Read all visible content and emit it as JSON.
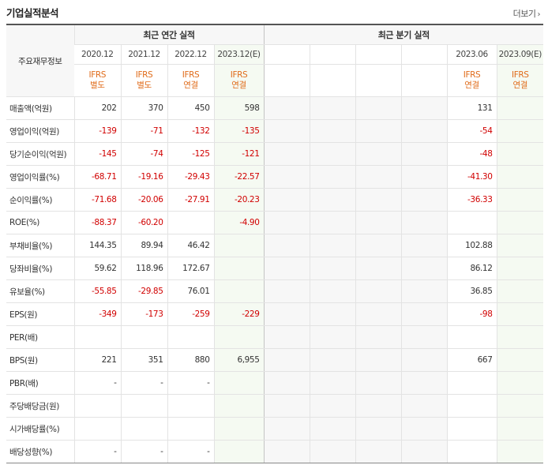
{
  "header": {
    "title": "기업실적분석",
    "more_label": "더보기"
  },
  "table": {
    "row_header_label": "주요재무정보",
    "annual_group_label": "최근 연간 실적",
    "quarter_group_label": "최근 분기 실적",
    "annual_periods": [
      "2020.12",
      "2021.12",
      "2022.12",
      "2023.12(E)"
    ],
    "annual_basis": [
      {
        "line1": "IFRS",
        "line2": "별도"
      },
      {
        "line1": "IFRS",
        "line2": "별도"
      },
      {
        "line1": "IFRS",
        "line2": "연결"
      },
      {
        "line1": "IFRS",
        "line2": "연결"
      }
    ],
    "quarter_periods": [
      "",
      "",
      "",
      "",
      "2023.06",
      "2023.09(E)"
    ],
    "quarter_basis": [
      {
        "line1": "",
        "line2": ""
      },
      {
        "line1": "",
        "line2": ""
      },
      {
        "line1": "",
        "line2": ""
      },
      {
        "line1": "",
        "line2": ""
      },
      {
        "line1": "IFRS",
        "line2": "연결"
      },
      {
        "line1": "IFRS",
        "line2": "연결"
      }
    ],
    "rows": [
      {
        "label": "매출액(억원)",
        "annual": [
          "202",
          "370",
          "450",
          "598"
        ],
        "quarter": [
          "",
          "",
          "",
          "",
          "131",
          ""
        ]
      },
      {
        "label": "영업이익(억원)",
        "annual": [
          "-139",
          "-71",
          "-132",
          "-135"
        ],
        "quarter": [
          "",
          "",
          "",
          "",
          "-54",
          ""
        ]
      },
      {
        "label": "당기순이익(억원)",
        "annual": [
          "-145",
          "-74",
          "-125",
          "-121"
        ],
        "quarter": [
          "",
          "",
          "",
          "",
          "-48",
          ""
        ]
      },
      {
        "label": "영업이익률(%)",
        "annual": [
          "-68.71",
          "-19.16",
          "-29.43",
          "-22.57"
        ],
        "quarter": [
          "",
          "",
          "",
          "",
          "-41.30",
          ""
        ]
      },
      {
        "label": "순이익률(%)",
        "annual": [
          "-71.68",
          "-20.06",
          "-27.91",
          "-20.23"
        ],
        "quarter": [
          "",
          "",
          "",
          "",
          "-36.33",
          ""
        ]
      },
      {
        "label": "ROE(%)",
        "annual": [
          "-88.37",
          "-60.20",
          "",
          "-4.90"
        ],
        "quarter": [
          "",
          "",
          "",
          "",
          "",
          ""
        ]
      },
      {
        "label": "부채비율(%)",
        "annual": [
          "144.35",
          "89.94",
          "46.42",
          ""
        ],
        "quarter": [
          "",
          "",
          "",
          "",
          "102.88",
          ""
        ]
      },
      {
        "label": "당좌비율(%)",
        "annual": [
          "59.62",
          "118.96",
          "172.67",
          ""
        ],
        "quarter": [
          "",
          "",
          "",
          "",
          "86.12",
          ""
        ]
      },
      {
        "label": "유보율(%)",
        "annual": [
          "-55.85",
          "-29.85",
          "76.01",
          ""
        ],
        "quarter": [
          "",
          "",
          "",
          "",
          "36.85",
          ""
        ]
      },
      {
        "label": "EPS(원)",
        "annual": [
          "-349",
          "-173",
          "-259",
          "-229"
        ],
        "quarter": [
          "",
          "",
          "",
          "",
          "-98",
          ""
        ]
      },
      {
        "label": "PER(배)",
        "annual": [
          "",
          "",
          "",
          ""
        ],
        "quarter": [
          "",
          "",
          "",
          "",
          "",
          ""
        ]
      },
      {
        "label": "BPS(원)",
        "annual": [
          "221",
          "351",
          "880",
          "6,955"
        ],
        "quarter": [
          "",
          "",
          "",
          "",
          "667",
          ""
        ]
      },
      {
        "label": "PBR(배)",
        "annual": [
          "-",
          "-",
          "-",
          ""
        ],
        "quarter": [
          "",
          "",
          "",
          "",
          "",
          ""
        ]
      },
      {
        "label": "주당배당금(원)",
        "annual": [
          "",
          "",
          "",
          ""
        ],
        "quarter": [
          "",
          "",
          "",
          "",
          "",
          ""
        ]
      },
      {
        "label": "시가배당률(%)",
        "annual": [
          "",
          "",
          "",
          ""
        ],
        "quarter": [
          "",
          "",
          "",
          "",
          "",
          ""
        ]
      },
      {
        "label": "배당성향(%)",
        "annual": [
          "-",
          "-",
          "-",
          ""
        ],
        "quarter": [
          "",
          "",
          "",
          "",
          "",
          ""
        ]
      }
    ]
  },
  "colors": {
    "basis_text": "#e06c1b",
    "negative": "#d10000",
    "estimate_bg": "#f5faf2",
    "label_bg": "#f7f7f7"
  }
}
